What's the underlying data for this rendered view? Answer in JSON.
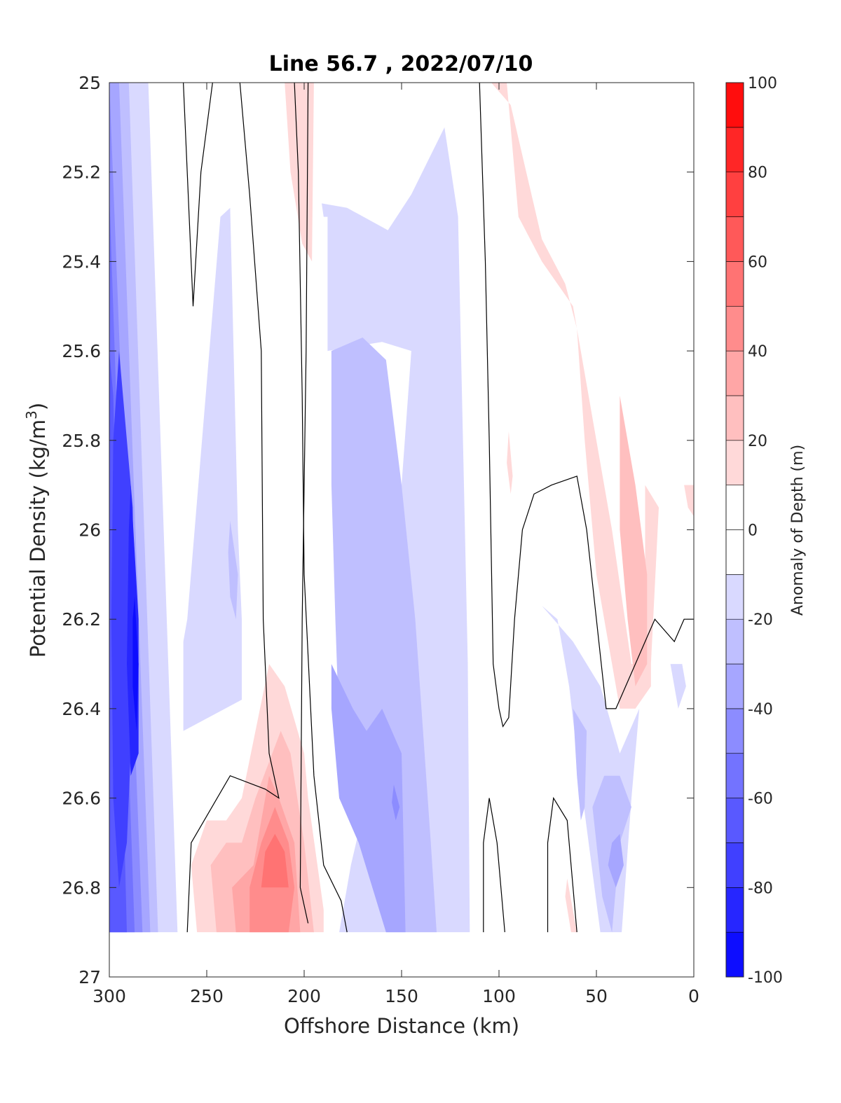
{
  "chart_data": {
    "type": "contour",
    "title": "Line 56.7 , 2022/07/10",
    "xlabel": "Offshore Distance (km)",
    "ylabel": "Potential Density (kg/m^3)",
    "ylabel_parts": {
      "base": "Potential Density (kg/m",
      "sup": "3",
      "end": ")"
    },
    "xlim": [
      300,
      0
    ],
    "ylim": [
      25,
      27
    ],
    "x_direction": "reversed",
    "y_direction": "reversed",
    "x_ticks": [
      300,
      250,
      200,
      150,
      100,
      50,
      0
    ],
    "y_ticks": [
      25,
      25.2,
      25.4,
      25.6,
      25.8,
      26,
      26.2,
      26.4,
      26.6,
      26.8,
      27
    ],
    "data_y_range": [
      25,
      26.9
    ],
    "colorbar": {
      "label": "Anomaly of Depth (m)",
      "range": [
        -100,
        100
      ],
      "step": 10,
      "ticks": [
        100,
        80,
        60,
        40,
        20,
        0,
        -20,
        -40,
        -60,
        -80,
        -100
      ],
      "colormap": "blue-white-red",
      "low_color": "#0000ff",
      "mid_color": "#ffffff",
      "high_color": "#ff0000"
    },
    "zero_contour_color": "#000000",
    "regions": [
      {
        "level": -10,
        "points": [
          [
            300,
            25
          ],
          [
            280,
            25
          ],
          [
            265,
            26.9
          ],
          [
            300,
            26.9
          ]
        ]
      },
      {
        "level": -20,
        "points": [
          [
            300,
            25
          ],
          [
            290,
            25
          ],
          [
            275,
            26.9
          ],
          [
            300,
            26.9
          ]
        ]
      },
      {
        "level": -30,
        "points": [
          [
            300,
            25
          ],
          [
            295,
            25
          ],
          [
            279,
            26.9
          ],
          [
            300,
            26.9
          ]
        ]
      },
      {
        "level": -40,
        "points": [
          [
            300,
            25
          ],
          [
            300,
            25
          ],
          [
            283,
            26.9
          ],
          [
            300,
            26.9
          ]
        ]
      },
      {
        "level": -50,
        "points": [
          [
            300,
            25.25
          ],
          [
            287,
            26.9
          ],
          [
            300,
            26.9
          ]
        ]
      },
      {
        "level": -60,
        "points": [
          [
            300,
            25.6
          ],
          [
            298,
            25.7
          ],
          [
            291,
            26.9
          ],
          [
            300,
            26.9
          ]
        ]
      },
      {
        "level": -70,
        "points": [
          [
            295,
            25.6
          ],
          [
            288,
            25.95
          ],
          [
            287,
            26.3
          ],
          [
            291,
            26.7
          ],
          [
            295,
            26.8
          ],
          [
            298,
            26.6
          ],
          [
            299,
            26.2
          ],
          [
            298,
            25.8
          ]
        ]
      },
      {
        "level": -80,
        "points": [
          [
            289,
            25.9
          ],
          [
            285,
            26.2
          ],
          [
            285,
            26.5
          ],
          [
            289,
            26.55
          ],
          [
            291,
            26.3
          ],
          [
            290,
            26.0
          ]
        ]
      },
      {
        "level": -90,
        "points": [
          [
            287,
            26.15
          ],
          [
            285,
            26.3
          ],
          [
            286,
            26.45
          ],
          [
            288,
            26.35
          ],
          [
            288,
            26.2
          ]
        ]
      },
      {
        "level": -10,
        "points": [
          [
            243,
            25.3
          ],
          [
            238,
            25.28
          ],
          [
            234,
            26
          ],
          [
            232,
            26.2
          ],
          [
            232,
            26.38
          ],
          [
            262,
            26.45
          ],
          [
            262,
            26.25
          ],
          [
            260,
            26.2
          ]
        ]
      },
      {
        "level": -20,
        "points": [
          [
            238,
            25.98
          ],
          [
            234,
            26.1
          ],
          [
            235,
            26.2
          ],
          [
            238,
            26.15
          ],
          [
            239,
            26.05
          ]
        ]
      },
      {
        "level": -10,
        "points": [
          [
            188,
            25.6
          ],
          [
            188,
            25.3
          ],
          [
            190,
            25.3
          ],
          [
            191,
            25.27
          ],
          [
            178,
            25.28
          ],
          [
            157,
            25.33
          ],
          [
            145,
            25.25
          ],
          [
            128,
            25.1
          ],
          [
            121,
            25.3
          ],
          [
            118,
            25.9
          ],
          [
            116,
            26.3
          ],
          [
            115,
            26.9
          ],
          [
            182,
            26.9
          ],
          [
            176,
            26.75
          ],
          [
            168,
            26.6
          ],
          [
            160,
            26.3
          ],
          [
            150,
            25.9
          ],
          [
            145,
            25.6
          ],
          [
            160,
            25.58
          ]
        ]
      },
      {
        "level": -20,
        "points": [
          [
            186,
            25.6
          ],
          [
            170,
            25.57
          ],
          [
            158,
            25.62
          ],
          [
            150,
            25.9
          ],
          [
            143,
            26.2
          ],
          [
            135,
            26.7
          ],
          [
            132,
            26.9
          ],
          [
            158,
            26.9
          ],
          [
            168,
            26.65
          ],
          [
            182,
            26.45
          ],
          [
            184,
            26.2
          ],
          [
            186,
            25.9
          ]
        ]
      },
      {
        "level": -30,
        "points": [
          [
            186,
            26.3
          ],
          [
            175,
            26.4
          ],
          [
            168,
            26.45
          ],
          [
            160,
            26.4
          ],
          [
            150,
            26.5
          ],
          [
            148,
            26.9
          ],
          [
            158,
            26.9
          ],
          [
            172,
            26.7
          ],
          [
            182,
            26.6
          ],
          [
            186,
            26.4
          ]
        ]
      },
      {
        "level": -40,
        "points": [
          [
            154,
            26.57
          ],
          [
            151,
            26.62
          ],
          [
            153,
            26.65
          ],
          [
            155,
            26.61
          ]
        ]
      },
      {
        "level": -10,
        "points": [
          [
            78,
            26.17
          ],
          [
            70,
            26.2
          ],
          [
            64,
            26.35
          ],
          [
            60,
            26.5
          ],
          [
            54,
            26.7
          ],
          [
            48,
            26.9
          ],
          [
            37,
            26.9
          ],
          [
            32,
            26.6
          ],
          [
            28,
            26.4
          ],
          [
            38,
            26.5
          ],
          [
            48,
            26.35
          ],
          [
            62,
            26.25
          ]
        ]
      },
      {
        "level": -20,
        "points": [
          [
            62,
            26.4
          ],
          [
            60,
            26.55
          ],
          [
            58,
            26.65
          ],
          [
            56,
            26.62
          ],
          [
            55,
            26.45
          ]
        ]
      },
      {
        "level": -20,
        "points": [
          [
            52,
            26.62
          ],
          [
            47,
            26.82
          ],
          [
            42,
            26.9
          ],
          [
            38,
            26.7
          ],
          [
            32,
            26.62
          ],
          [
            38,
            26.55
          ],
          [
            46,
            26.55
          ]
        ]
      },
      {
        "level": -30,
        "points": [
          [
            44,
            26.75
          ],
          [
            40,
            26.8
          ],
          [
            36,
            26.75
          ],
          [
            38,
            26.68
          ],
          [
            42,
            26.7
          ]
        ]
      },
      {
        "level": -10,
        "points": [
          [
            12,
            26.3
          ],
          [
            8,
            26.4
          ],
          [
            4,
            26.35
          ],
          [
            6,
            26.3
          ]
        ]
      },
      {
        "level": 10,
        "points": [
          [
            210,
            25
          ],
          [
            195,
            25
          ],
          [
            196,
            25.4
          ],
          [
            201,
            25.36
          ],
          [
            207,
            25.2
          ]
        ]
      },
      {
        "level": 10,
        "points": [
          [
            104,
            25
          ],
          [
            96,
            25
          ],
          [
            90,
            25.3
          ],
          [
            78,
            25.4
          ],
          [
            62,
            25.5
          ],
          [
            42,
            26
          ],
          [
            32,
            26.3
          ],
          [
            28,
            26.3
          ],
          [
            25,
            26.2
          ],
          [
            25,
            25.9
          ],
          [
            18,
            25.95
          ],
          [
            22,
            26.3
          ],
          [
            22,
            26.35
          ],
          [
            30,
            26.4
          ],
          [
            38,
            26.4
          ],
          [
            50,
            26.1
          ],
          [
            56,
            25.8
          ],
          [
            60,
            25.55
          ],
          [
            66,
            25.45
          ],
          [
            78,
            25.35
          ],
          [
            86,
            25.2
          ],
          [
            94,
            25.05
          ]
        ]
      },
      {
        "level": 20,
        "points": [
          [
            38,
            25.7
          ],
          [
            30,
            25.9
          ],
          [
            24,
            26.1
          ],
          [
            24,
            26.3
          ],
          [
            30,
            26.35
          ],
          [
            34,
            26.2
          ],
          [
            38,
            26.0
          ]
        ]
      },
      {
        "level": 10,
        "points": [
          [
            95,
            25.78
          ],
          [
            93,
            25.88
          ],
          [
            94,
            25.92
          ],
          [
            96,
            25.85
          ]
        ]
      },
      {
        "level": 10,
        "points": [
          [
            5,
            25.9
          ],
          [
            0,
            25.9
          ],
          [
            0,
            25.97
          ],
          [
            3,
            25.95
          ]
        ]
      },
      {
        "level": 10,
        "points": [
          [
            65,
            26.78
          ],
          [
            60,
            26.9
          ],
          [
            63,
            26.9
          ],
          [
            66,
            26.82
          ]
        ]
      },
      {
        "level": 10,
        "points": [
          [
            218,
            26.3
          ],
          [
            210,
            26.35
          ],
          [
            200,
            26.5
          ],
          [
            198,
            26.6
          ],
          [
            190,
            26.85
          ],
          [
            190,
            26.9
          ],
          [
            255,
            26.9
          ],
          [
            258,
            26.75
          ],
          [
            250,
            26.65
          ],
          [
            240,
            26.65
          ],
          [
            232,
            26.6
          ]
        ]
      },
      {
        "level": 20,
        "points": [
          [
            212,
            26.45
          ],
          [
            207,
            26.5
          ],
          [
            200,
            26.7
          ],
          [
            195,
            26.9
          ],
          [
            245,
            26.9
          ],
          [
            248,
            26.75
          ],
          [
            240,
            26.7
          ],
          [
            232,
            26.7
          ],
          [
            225,
            26.6
          ]
        ]
      },
      {
        "level": 30,
        "points": [
          [
            218,
            26.55
          ],
          [
            213,
            26.6
          ],
          [
            205,
            26.7
          ],
          [
            202,
            26.9
          ],
          [
            235,
            26.9
          ],
          [
            237,
            26.8
          ],
          [
            226,
            26.75
          ]
        ]
      },
      {
        "level": 40,
        "points": [
          [
            215,
            26.62
          ],
          [
            208,
            26.7
          ],
          [
            205,
            26.8
          ],
          [
            208,
            26.9
          ],
          [
            228,
            26.9
          ],
          [
            228,
            26.8
          ],
          [
            222,
            26.7
          ]
        ]
      },
      {
        "level": 50,
        "points": [
          [
            215,
            26.68
          ],
          [
            210,
            26.72
          ],
          [
            208,
            26.8
          ],
          [
            222,
            26.8
          ],
          [
            220,
            26.72
          ]
        ]
      }
    ],
    "zero_contours": [
      [
        [
          262,
          25
        ],
        [
          257,
          25.5
        ],
        [
          253,
          25.2
        ],
        [
          247,
          25
        ]
      ],
      [
        [
          233,
          25
        ],
        [
          228,
          25.25
        ],
        [
          222,
          25.6
        ],
        [
          221,
          26.2
        ],
        [
          219,
          26.4
        ],
        [
          218,
          26.5
        ],
        [
          213,
          26.6
        ],
        [
          220,
          26.58
        ],
        [
          238,
          26.55
        ],
        [
          258,
          26.7
        ],
        [
          260,
          26.9
        ]
      ],
      [
        [
          198,
          25
        ],
        [
          199,
          25.6
        ],
        [
          201,
          26.2
        ],
        [
          202,
          26.8
        ],
        [
          198,
          26.88
        ]
      ],
      [
        [
          178,
          26.9
        ],
        [
          181,
          26.83
        ],
        [
          190,
          26.75
        ],
        [
          195,
          26.55
        ],
        [
          200,
          26.1
        ],
        [
          201,
          25.7
        ],
        [
          203,
          25.2
        ],
        [
          205,
          25
        ]
      ],
      [
        [
          110,
          25
        ],
        [
          107,
          25.4
        ],
        [
          105,
          25.8
        ],
        [
          103,
          26.3
        ],
        [
          100,
          26.4
        ],
        [
          98,
          26.44
        ],
        [
          95,
          26.42
        ],
        [
          92,
          26.2
        ],
        [
          88,
          26.0
        ],
        [
          82,
          25.92
        ],
        [
          73,
          25.9
        ],
        [
          60,
          25.88
        ],
        [
          55,
          26.0
        ],
        [
          50,
          26.2
        ],
        [
          45,
          26.4
        ],
        [
          40,
          26.4
        ],
        [
          30,
          26.3
        ],
        [
          20,
          26.2
        ],
        [
          10,
          26.25
        ],
        [
          5,
          26.2
        ],
        [
          0,
          26.2
        ]
      ],
      [
        [
          108,
          26.9
        ],
        [
          108,
          26.7
        ],
        [
          105,
          26.6
        ],
        [
          101,
          26.7
        ],
        [
          97,
          26.9
        ]
      ],
      [
        [
          75,
          26.9
        ],
        [
          75,
          26.7
        ],
        [
          72,
          26.6
        ],
        [
          65,
          26.65
        ],
        [
          60,
          26.9
        ]
      ]
    ]
  }
}
